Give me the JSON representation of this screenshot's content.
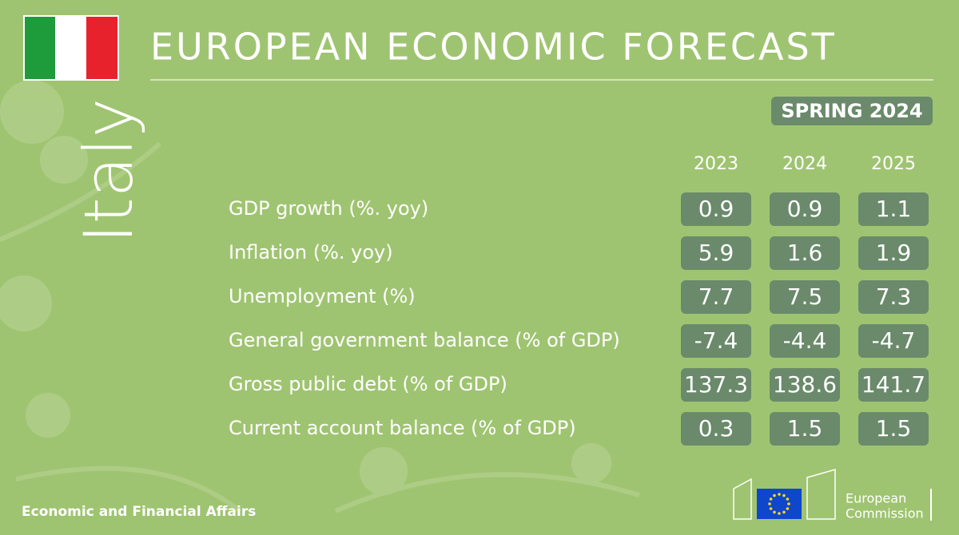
{
  "header": {
    "title": "EUROPEAN ECONOMIC FORECAST",
    "country": "Italy",
    "edition": "SPRING 2024"
  },
  "table": {
    "columns": [
      "2023",
      "2024",
      "2025"
    ],
    "rows": [
      {
        "label": "GDP growth (%. yoy)",
        "values": [
          0.9,
          0.9,
          1.1
        ]
      },
      {
        "label": "Inflation (%. yoy)",
        "values": [
          5.9,
          1.6,
          1.9
        ]
      },
      {
        "label": "Unemployment (%)",
        "values": [
          7.7,
          7.5,
          7.3
        ]
      },
      {
        "label": "General government balance (% of GDP)",
        "values": [
          -7.4,
          -4.4,
          -4.7
        ]
      },
      {
        "label": "Gross public debt (% of GDP)",
        "values": [
          137.3,
          138.6,
          141.7
        ]
      },
      {
        "label": "Current account balance (% of GDP)",
        "values": [
          0.3,
          1.5,
          1.5
        ]
      }
    ]
  },
  "footer": {
    "department": "Economic and Financial Affairs",
    "logo_line1": "European",
    "logo_line2": "Commission"
  }
}
